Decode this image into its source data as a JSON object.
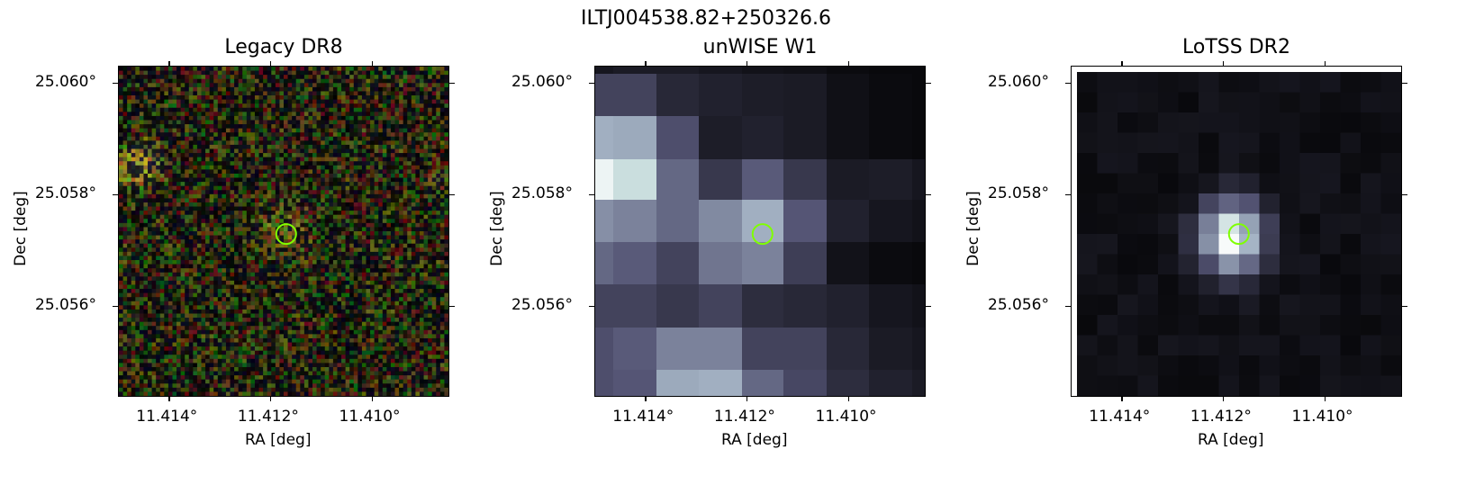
{
  "figure": {
    "title": "ILTJ004538.82+250326.6"
  },
  "chart_data": [
    {
      "type": "heatmap",
      "title": "Legacy DR8",
      "xlabel": "RA [deg]",
      "ylabel": "Dec [deg]",
      "x_ticks": [
        "11.414°",
        "11.412°",
        "11.410°"
      ],
      "y_ticks": [
        "25.060°",
        "25.058°",
        "25.056°"
      ],
      "x_tick_values": [
        11.414,
        11.412,
        11.41
      ],
      "y_tick_values": [
        25.06,
        25.058,
        25.056
      ],
      "xlim": [
        11.415,
        11.4085
      ],
      "ylim": [
        25.0544,
        25.0603
      ],
      "marker": {
        "ra": 11.4117,
        "dec": 25.0573,
        "color": "#7fff00"
      },
      "colormap": "rgb-composite-noise"
    },
    {
      "type": "heatmap",
      "title": "unWISE W1",
      "xlabel": "RA [deg]",
      "ylabel": "Dec [deg]",
      "x_ticks": [
        "11.414°",
        "11.412°",
        "11.410°"
      ],
      "y_ticks": [
        "25.060°",
        "25.058°",
        "25.056°"
      ],
      "x_tick_values": [
        11.414,
        11.412,
        11.41
      ],
      "y_tick_values": [
        25.06,
        25.058,
        25.056
      ],
      "xlim": [
        11.415,
        11.4085
      ],
      "ylim": [
        25.0544,
        25.0603
      ],
      "marker": {
        "ra": 11.4117,
        "dec": 25.0573,
        "color": "#7fff00"
      },
      "colormap": "bone"
    },
    {
      "type": "heatmap",
      "title": "LoTSS DR2",
      "xlabel": "RA [deg]",
      "ylabel": "Dec [deg]",
      "x_ticks": [
        "11.414°",
        "11.412°",
        "11.410°"
      ],
      "y_ticks": [
        "25.060°",
        "25.058°",
        "25.056°"
      ],
      "x_tick_values": [
        11.414,
        11.412,
        11.41
      ],
      "y_tick_values": [
        25.06,
        25.058,
        25.056
      ],
      "xlim": [
        11.415,
        11.4085
      ],
      "ylim": [
        25.0544,
        25.0603
      ],
      "marker": {
        "ra": 11.4117,
        "dec": 25.0573,
        "color": "#7fff00"
      },
      "colormap": "bone"
    }
  ]
}
